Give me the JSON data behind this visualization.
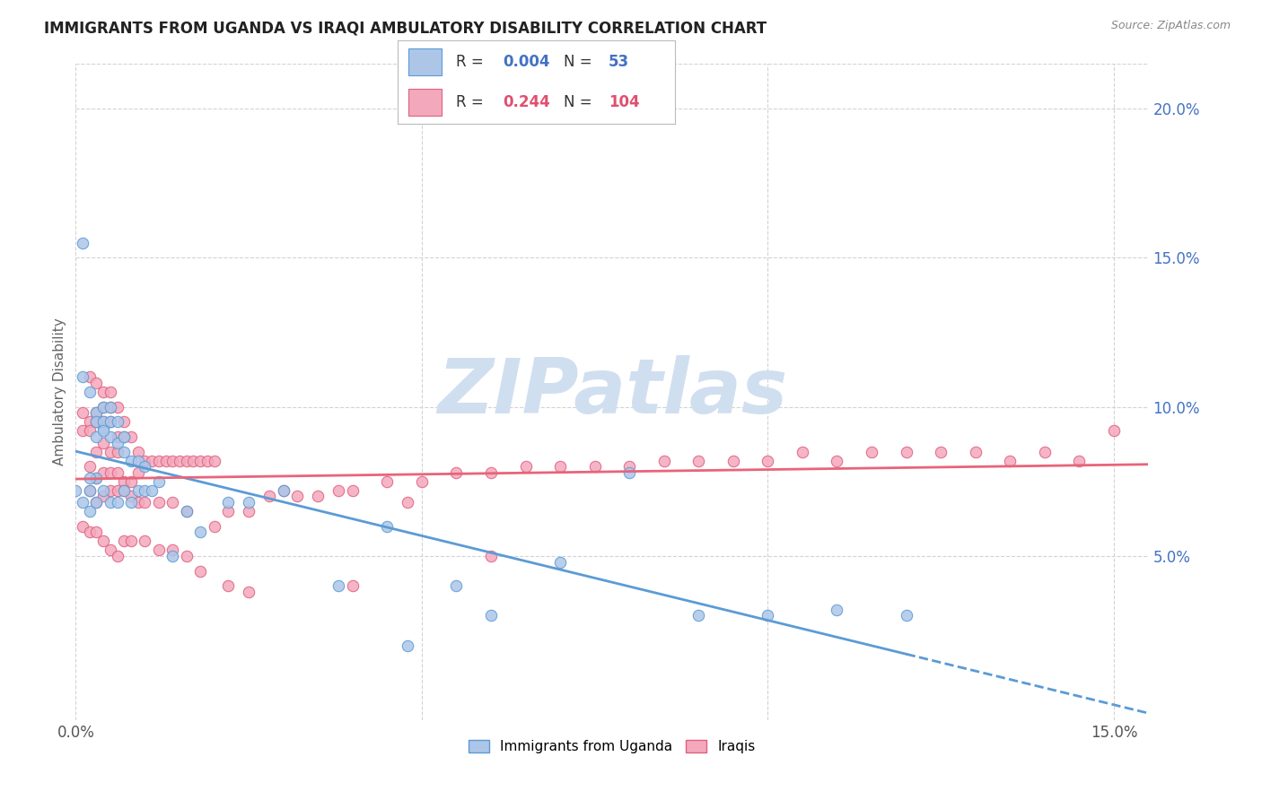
{
  "title": "IMMIGRANTS FROM UGANDA VS IRAQI AMBULATORY DISABILITY CORRELATION CHART",
  "source": "Source: ZipAtlas.com",
  "ylabel": "Ambulatory Disability",
  "xlim": [
    0.0,
    0.155
  ],
  "ylim": [
    -0.005,
    0.215
  ],
  "ytick_positions": [
    0.05,
    0.1,
    0.15,
    0.2
  ],
  "ytick_labels": [
    "5.0%",
    "10.0%",
    "15.0%",
    "20.0%"
  ],
  "xtick_positions": [
    0.0,
    0.05,
    0.1,
    0.15
  ],
  "xtick_labels": [
    "0.0%",
    "",
    "",
    "15.0%"
  ],
  "legend_r1": "0.004",
  "legend_n1": "53",
  "legend_r2": "0.244",
  "legend_n2": "104",
  "color_uganda": "#adc6e8",
  "color_iraqi": "#f4a8bc",
  "edge_uganda": "#5b9bd5",
  "edge_iraqi": "#e06080",
  "line_uganda": "#5b9bd5",
  "line_iraqi": "#e8647a",
  "text_blue": "#4472c4",
  "text_pink": "#e05070",
  "watermark_color": "#d0dff0",
  "uganda_x": [
    0.001,
    0.002,
    0.003,
    0.004,
    0.005,
    0.006,
    0.007,
    0.008,
    0.009,
    0.01,
    0.001,
    0.002,
    0.003,
    0.004,
    0.005,
    0.003,
    0.004,
    0.005,
    0.006,
    0.007,
    0.002,
    0.003,
    0.004,
    0.002,
    0.003,
    0.004,
    0.005,
    0.006,
    0.007,
    0.008,
    0.009,
    0.01,
    0.011,
    0.012,
    0.014,
    0.016,
    0.018,
    0.022,
    0.025,
    0.03,
    0.038,
    0.045,
    0.055,
    0.06,
    0.07,
    0.08,
    0.09,
    0.1,
    0.11,
    0.12,
    0.0,
    0.001,
    0.048
  ],
  "uganda_y": [
    0.11,
    0.105,
    0.098,
    0.093,
    0.09,
    0.088,
    0.085,
    0.082,
    0.082,
    0.08,
    0.068,
    0.072,
    0.076,
    0.1,
    0.1,
    0.095,
    0.095,
    0.095,
    0.095,
    0.09,
    0.076,
    0.09,
    0.092,
    0.065,
    0.068,
    0.072,
    0.068,
    0.068,
    0.072,
    0.068,
    0.072,
    0.072,
    0.072,
    0.075,
    0.05,
    0.065,
    0.058,
    0.068,
    0.068,
    0.072,
    0.04,
    0.06,
    0.04,
    0.03,
    0.048,
    0.078,
    0.03,
    0.03,
    0.032,
    0.03,
    0.072,
    0.155,
    0.02
  ],
  "iraqi_x": [
    0.001,
    0.002,
    0.003,
    0.004,
    0.005,
    0.006,
    0.007,
    0.008,
    0.009,
    0.01,
    0.011,
    0.012,
    0.013,
    0.014,
    0.015,
    0.016,
    0.017,
    0.018,
    0.019,
    0.02,
    0.001,
    0.002,
    0.003,
    0.004,
    0.005,
    0.006,
    0.007,
    0.002,
    0.003,
    0.004,
    0.005,
    0.006,
    0.002,
    0.003,
    0.004,
    0.005,
    0.006,
    0.007,
    0.008,
    0.009,
    0.003,
    0.004,
    0.005,
    0.006,
    0.007,
    0.008,
    0.009,
    0.01,
    0.012,
    0.014,
    0.016,
    0.02,
    0.022,
    0.025,
    0.028,
    0.03,
    0.032,
    0.035,
    0.038,
    0.04,
    0.045,
    0.05,
    0.055,
    0.06,
    0.065,
    0.07,
    0.075,
    0.08,
    0.085,
    0.09,
    0.095,
    0.1,
    0.105,
    0.11,
    0.115,
    0.12,
    0.125,
    0.13,
    0.135,
    0.14,
    0.145,
    0.15,
    0.001,
    0.002,
    0.003,
    0.004,
    0.005,
    0.006,
    0.007,
    0.008,
    0.01,
    0.012,
    0.014,
    0.016,
    0.018,
    0.002,
    0.003,
    0.004,
    0.005,
    0.04,
    0.022,
    0.025,
    0.048,
    0.06
  ],
  "iraqi_y": [
    0.098,
    0.095,
    0.098,
    0.1,
    0.1,
    0.1,
    0.095,
    0.09,
    0.085,
    0.082,
    0.082,
    0.082,
    0.082,
    0.082,
    0.082,
    0.082,
    0.082,
    0.082,
    0.082,
    0.082,
    0.092,
    0.092,
    0.095,
    0.095,
    0.095,
    0.09,
    0.09,
    0.08,
    0.085,
    0.088,
    0.085,
    0.085,
    0.072,
    0.076,
    0.078,
    0.078,
    0.078,
    0.075,
    0.075,
    0.078,
    0.068,
    0.07,
    0.072,
    0.072,
    0.072,
    0.07,
    0.068,
    0.068,
    0.068,
    0.068,
    0.065,
    0.06,
    0.065,
    0.065,
    0.07,
    0.072,
    0.07,
    0.07,
    0.072,
    0.072,
    0.075,
    0.075,
    0.078,
    0.078,
    0.08,
    0.08,
    0.08,
    0.08,
    0.082,
    0.082,
    0.082,
    0.082,
    0.085,
    0.082,
    0.085,
    0.085,
    0.085,
    0.085,
    0.082,
    0.085,
    0.082,
    0.092,
    0.06,
    0.058,
    0.058,
    0.055,
    0.052,
    0.05,
    0.055,
    0.055,
    0.055,
    0.052,
    0.052,
    0.05,
    0.045,
    0.11,
    0.108,
    0.105,
    0.105,
    0.04,
    0.04,
    0.038,
    0.068,
    0.05
  ]
}
